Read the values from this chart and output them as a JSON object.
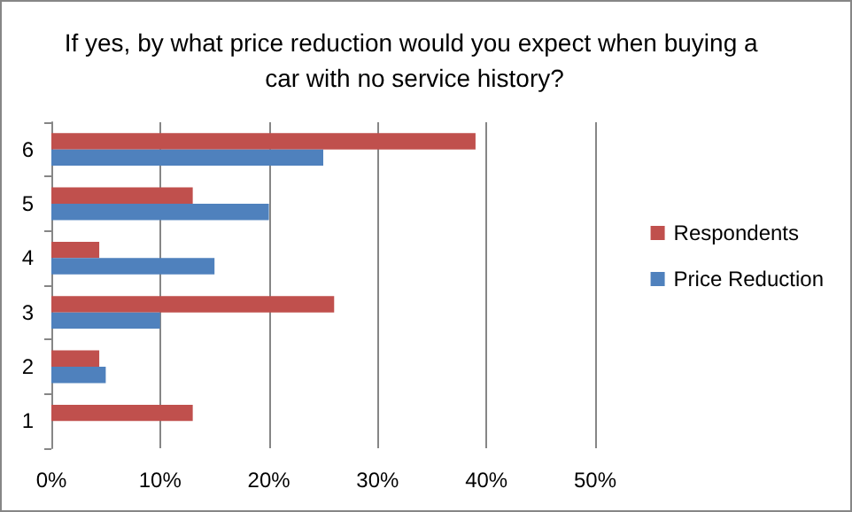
{
  "chart_data": {
    "type": "bar",
    "orientation": "horizontal",
    "title": "If yes, by what price reduction would you expect when buying a car with no service history?",
    "categories": [
      "6",
      "5",
      "4",
      "3",
      "2",
      "1"
    ],
    "series": [
      {
        "name": "Respondents",
        "color": "#c0504d",
        "values": [
          39,
          13,
          4.4,
          26,
          4.4,
          13
        ]
      },
      {
        "name": "Price Reduction",
        "color": "#4f81bd",
        "values": [
          25,
          20,
          15,
          10,
          5,
          0
        ]
      }
    ],
    "xlim": [
      0,
      50
    ],
    "xticks": [
      {
        "value": 0,
        "label": "0%"
      },
      {
        "value": 10,
        "label": "10%"
      },
      {
        "value": 20,
        "label": "20%"
      },
      {
        "value": 30,
        "label": "30%"
      },
      {
        "value": 40,
        "label": "40%"
      },
      {
        "value": 50,
        "label": "50%"
      }
    ],
    "grid": "x",
    "legend": "right"
  }
}
